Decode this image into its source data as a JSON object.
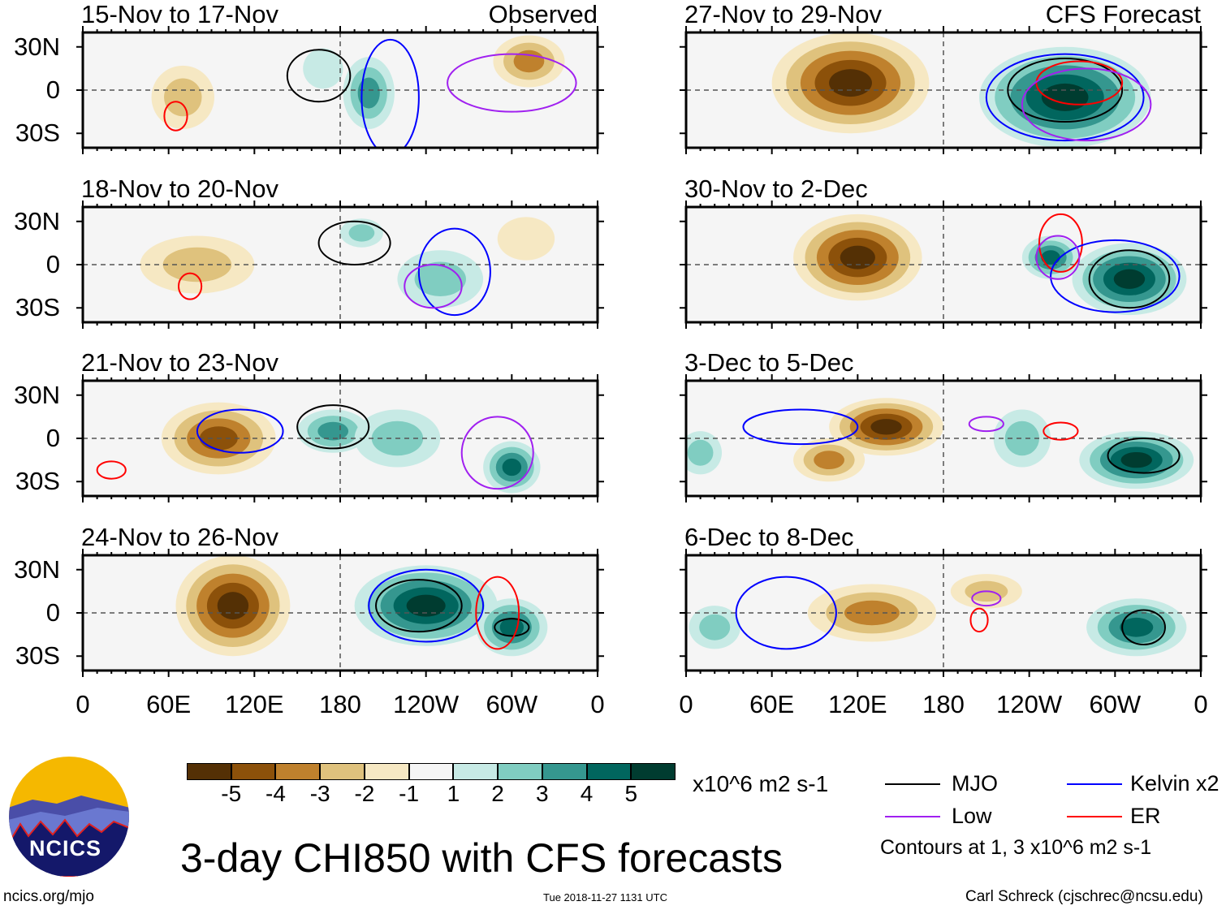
{
  "chart_data": {
    "type": "heatmap",
    "title": "3-day CHI850 with CFS forecasts",
    "units": "x10^6 m2 s-1",
    "lon_ticks": [
      "0",
      "60E",
      "120E",
      "180",
      "120W",
      "60W",
      "0"
    ],
    "lat_ticks": [
      "30N",
      "0",
      "30S"
    ],
    "lat_range": [
      -40,
      40
    ],
    "lon_range": [
      0,
      360
    ],
    "colorbar": {
      "labels": [
        "-5",
        "-4",
        "-3",
        "-2",
        "-1",
        "1",
        "2",
        "3",
        "4",
        "5"
      ],
      "colors": [
        "#543005",
        "#8c510a",
        "#bf812d",
        "#dfc27d",
        "#f6e8c3",
        "#f5f5f5",
        "#c7eae5",
        "#80cdc1",
        "#35978f",
        "#01665e",
        "#003c30"
      ]
    },
    "legend": [
      {
        "label": "MJO",
        "color": "#000000"
      },
      {
        "label": "Low",
        "color": "#a020f0"
      },
      {
        "label": "Kelvin x2",
        "color": "#0000ff"
      },
      {
        "label": "ER",
        "color": "#ff0000"
      }
    ],
    "contour_note": "Contours at 1, 3 x10^6 m2 s-1",
    "panels": [
      {
        "title": "15-Nov to 17-Nov",
        "tag": "Observed",
        "col": 0,
        "row": 0,
        "anomalies": [
          {
            "lon": 70,
            "lat": -5,
            "v": -2,
            "rx": 22,
            "ry": 22
          },
          {
            "lon": 312,
            "lat": 20,
            "v": -3,
            "rx": 25,
            "ry": 18
          },
          {
            "lon": 200,
            "lat": -2,
            "v": 3,
            "rx": 18,
            "ry": 25
          },
          {
            "lon": 168,
            "lat": 15,
            "v": 1,
            "rx": 14,
            "ry": 14
          }
        ],
        "contours": [
          {
            "t": "MJO",
            "lon": 165,
            "lat": 10,
            "rx": 22,
            "ry": 18
          },
          {
            "t": "ER",
            "lon": 65,
            "lat": -18,
            "rx": 8,
            "ry": 10
          },
          {
            "t": "Kelvin",
            "lon": 215,
            "lat": -5,
            "rx": 20,
            "ry": 40
          },
          {
            "t": "Low",
            "lon": 300,
            "lat": 5,
            "rx": 45,
            "ry": 20
          }
        ]
      },
      {
        "title": "18-Nov to 20-Nov",
        "tag": "",
        "col": 0,
        "row": 1,
        "anomalies": [
          {
            "lon": 80,
            "lat": 0,
            "v": -2,
            "rx": 40,
            "ry": 20
          },
          {
            "lon": 250,
            "lat": -10,
            "v": 2,
            "rx": 30,
            "ry": 20
          },
          {
            "lon": 195,
            "lat": 22,
            "v": 2,
            "rx": 15,
            "ry": 10
          },
          {
            "lon": 310,
            "lat": 18,
            "v": -1,
            "rx": 20,
            "ry": 15
          }
        ],
        "contours": [
          {
            "t": "MJO",
            "lon": 190,
            "lat": 15,
            "rx": 25,
            "ry": 15
          },
          {
            "t": "ER",
            "lon": 75,
            "lat": -15,
            "rx": 8,
            "ry": 9
          },
          {
            "t": "Kelvin",
            "lon": 260,
            "lat": -5,
            "rx": 25,
            "ry": 30
          },
          {
            "t": "Low",
            "lon": 245,
            "lat": -15,
            "rx": 20,
            "ry": 15
          }
        ]
      },
      {
        "title": "21-Nov to 23-Nov",
        "tag": "",
        "col": 0,
        "row": 2,
        "anomalies": [
          {
            "lon": 95,
            "lat": 0,
            "v": -4,
            "rx": 40,
            "ry": 25
          },
          {
            "lon": 175,
            "lat": 5,
            "v": 3,
            "rx": 25,
            "ry": 15
          },
          {
            "lon": 300,
            "lat": -20,
            "v": 4,
            "rx": 20,
            "ry": 18
          },
          {
            "lon": 220,
            "lat": 0,
            "v": 2,
            "rx": 30,
            "ry": 20
          }
        ],
        "contours": [
          {
            "t": "MJO",
            "lon": 175,
            "lat": 8,
            "rx": 25,
            "ry": 15
          },
          {
            "t": "Kelvin",
            "lon": 110,
            "lat": 5,
            "rx": 30,
            "ry": 15
          },
          {
            "t": "ER",
            "lon": 20,
            "lat": -22,
            "rx": 10,
            "ry": 6
          },
          {
            "t": "Low",
            "lon": 290,
            "lat": -10,
            "rx": 25,
            "ry": 25
          }
        ]
      },
      {
        "title": "24-Nov to 26-Nov",
        "tag": "",
        "col": 0,
        "row": 3,
        "anomalies": [
          {
            "lon": 105,
            "lat": 5,
            "v": -5,
            "rx": 40,
            "ry": 35
          },
          {
            "lon": 240,
            "lat": 5,
            "v": 5,
            "rx": 50,
            "ry": 28
          },
          {
            "lon": 300,
            "lat": -10,
            "v": 4,
            "rx": 25,
            "ry": 20
          }
        ],
        "contours": [
          {
            "t": "MJO",
            "lon": 235,
            "lat": 5,
            "rx": 30,
            "ry": 18
          },
          {
            "t": "MJO",
            "lon": 300,
            "lat": -10,
            "rx": 12,
            "ry": 6
          },
          {
            "t": "Kelvin",
            "lon": 240,
            "lat": 5,
            "rx": 40,
            "ry": 25
          },
          {
            "t": "ER",
            "lon": 290,
            "lat": 0,
            "rx": 15,
            "ry": 25
          }
        ]
      },
      {
        "title": "27-Nov to 29-Nov",
        "tag": "CFS Forecast",
        "col": 1,
        "row": 0,
        "anomalies": [
          {
            "lon": 115,
            "lat": 5,
            "v": -5,
            "rx": 55,
            "ry": 35
          },
          {
            "lon": 265,
            "lat": -5,
            "v": 5,
            "rx": 60,
            "ry": 35
          }
        ],
        "contours": [
          {
            "t": "MJO",
            "lon": 265,
            "lat": 0,
            "rx": 40,
            "ry": 22
          },
          {
            "t": "ER",
            "lon": 275,
            "lat": 5,
            "rx": 30,
            "ry": 15
          },
          {
            "t": "Kelvin",
            "lon": 265,
            "lat": -5,
            "rx": 55,
            "ry": 30
          },
          {
            "t": "Low",
            "lon": 280,
            "lat": -10,
            "rx": 45,
            "ry": 25
          }
        ]
      },
      {
        "title": "30-Nov to 2-Dec",
        "tag": "",
        "col": 1,
        "row": 1,
        "anomalies": [
          {
            "lon": 120,
            "lat": 5,
            "v": -5,
            "rx": 45,
            "ry": 30
          },
          {
            "lon": 255,
            "lat": 5,
            "v": 4,
            "rx": 20,
            "ry": 15
          },
          {
            "lon": 310,
            "lat": -10,
            "v": 5,
            "rx": 40,
            "ry": 25
          }
        ],
        "contours": [
          {
            "t": "MJO",
            "lon": 310,
            "lat": -10,
            "rx": 28,
            "ry": 20
          },
          {
            "t": "ER",
            "lon": 262,
            "lat": 15,
            "rx": 15,
            "ry": 20
          },
          {
            "t": "Kelvin",
            "lon": 300,
            "lat": -8,
            "rx": 45,
            "ry": 25
          },
          {
            "t": "Low",
            "lon": 260,
            "lat": 5,
            "rx": 15,
            "ry": 15
          }
        ]
      },
      {
        "title": "3-Dec to 5-Dec",
        "tag": "",
        "col": 1,
        "row": 2,
        "anomalies": [
          {
            "lon": 140,
            "lat": 8,
            "v": -5,
            "rx": 40,
            "ry": 20
          },
          {
            "lon": 100,
            "lat": -15,
            "v": -3,
            "rx": 25,
            "ry": 15
          },
          {
            "lon": 315,
            "lat": -15,
            "v": 5,
            "rx": 40,
            "ry": 20
          },
          {
            "lon": 235,
            "lat": 0,
            "v": 2,
            "rx": 20,
            "ry": 20
          },
          {
            "lon": 10,
            "lat": -10,
            "v": 2,
            "rx": 15,
            "ry": 15
          }
        ],
        "contours": [
          {
            "t": "MJO",
            "lon": 320,
            "lat": -12,
            "rx": 25,
            "ry": 12
          },
          {
            "t": "ER",
            "lon": 262,
            "lat": 5,
            "rx": 12,
            "ry": 6
          },
          {
            "t": "Kelvin",
            "lon": 80,
            "lat": 8,
            "rx": 40,
            "ry": 12
          },
          {
            "t": "Low",
            "lon": 210,
            "lat": 10,
            "rx": 12,
            "ry": 5
          }
        ]
      },
      {
        "title": "6-Dec to 8-Dec",
        "tag": "",
        "col": 1,
        "row": 3,
        "anomalies": [
          {
            "lon": 130,
            "lat": 0,
            "v": -3,
            "rx": 45,
            "ry": 20
          },
          {
            "lon": 210,
            "lat": 15,
            "v": -2,
            "rx": 25,
            "ry": 12
          },
          {
            "lon": 315,
            "lat": -10,
            "v": 4,
            "rx": 35,
            "ry": 20
          },
          {
            "lon": 20,
            "lat": -10,
            "v": 2,
            "rx": 18,
            "ry": 15
          }
        ],
        "contours": [
          {
            "t": "MJO",
            "lon": 320,
            "lat": -10,
            "rx": 15,
            "ry": 12
          },
          {
            "t": "ER",
            "lon": 205,
            "lat": -5,
            "rx": 6,
            "ry": 8
          },
          {
            "t": "Low",
            "lon": 210,
            "lat": 10,
            "rx": 10,
            "ry": 5
          },
          {
            "t": "Kelvin",
            "lon": 70,
            "lat": 0,
            "rx": 35,
            "ry": 25
          }
        ]
      }
    ]
  },
  "footer": {
    "website": "ncics.org/mjo",
    "timestamp": "Tue 2018-11-27 1131 UTC",
    "author": "Carl Schreck (cjschrec@ncsu.edu)",
    "logo_text": "NCICS"
  }
}
